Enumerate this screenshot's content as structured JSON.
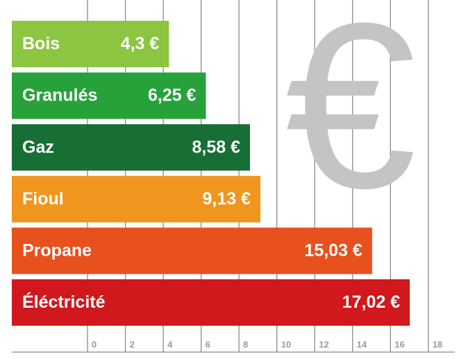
{
  "chart_data": {
    "type": "bar",
    "orientation": "horizontal",
    "background_symbol": "€",
    "categories": [
      "Bois",
      "Granulés",
      "Gaz",
      "Fioul",
      "Propane",
      "Éléctricité"
    ],
    "values": [
      4.3,
      6.25,
      8.58,
      9.13,
      15.03,
      17.02
    ],
    "value_labels": [
      "4,3 €",
      "6,25 €",
      "8,58 €",
      "9,13 €",
      "15,03 €",
      "17,02 €"
    ],
    "colors": [
      "#8cc540",
      "#27a13a",
      "#176f35",
      "#f0951e",
      "#e8501d",
      "#d0181d"
    ],
    "xlim": [
      -4,
      19.4
    ],
    "xticks": [
      0,
      2,
      4,
      6,
      8,
      10,
      12,
      14,
      16,
      18
    ],
    "grid": true
  }
}
